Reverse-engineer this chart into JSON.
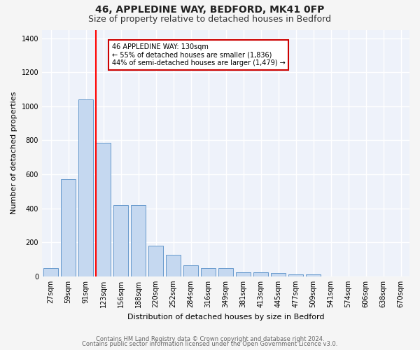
{
  "title1": "46, APPLEDINE WAY, BEDFORD, MK41 0FP",
  "title2": "Size of property relative to detached houses in Bedford",
  "xlabel": "Distribution of detached houses by size in Bedford",
  "ylabel": "Number of detached properties",
  "categories": [
    "27sqm",
    "59sqm",
    "91sqm",
    "123sqm",
    "156sqm",
    "188sqm",
    "220sqm",
    "252sqm",
    "284sqm",
    "316sqm",
    "349sqm",
    "381sqm",
    "413sqm",
    "445sqm",
    "477sqm",
    "509sqm",
    "541sqm",
    "574sqm",
    "606sqm",
    "638sqm",
    "670sqm"
  ],
  "values": [
    50,
    570,
    1040,
    785,
    420,
    420,
    180,
    125,
    65,
    50,
    50,
    25,
    22,
    18,
    12,
    10,
    0,
    0,
    0,
    0,
    0
  ],
  "bar_color": "#c5d8f0",
  "bar_edge_color": "#6699cc",
  "red_line_bar_index": 3,
  "annotation_text": "46 APPLEDINE WAY: 130sqm\n← 55% of detached houses are smaller (1,836)\n44% of semi-detached houses are larger (1,479) →",
  "annotation_box_color": "#ffffff",
  "annotation_box_edge_color": "#cc0000",
  "ylim": [
    0,
    1450
  ],
  "yticks": [
    0,
    200,
    400,
    600,
    800,
    1000,
    1200,
    1400
  ],
  "footer1": "Contains HM Land Registry data © Crown copyright and database right 2024.",
  "footer2": "Contains public sector information licensed under the Open Government Licence v3.0.",
  "bg_color": "#eef2fa",
  "grid_color": "#ffffff",
  "title1_fontsize": 10,
  "title2_fontsize": 9,
  "tick_fontsize": 7,
  "ylabel_fontsize": 8,
  "xlabel_fontsize": 8,
  "footer_fontsize": 6,
  "annot_fontsize": 7
}
